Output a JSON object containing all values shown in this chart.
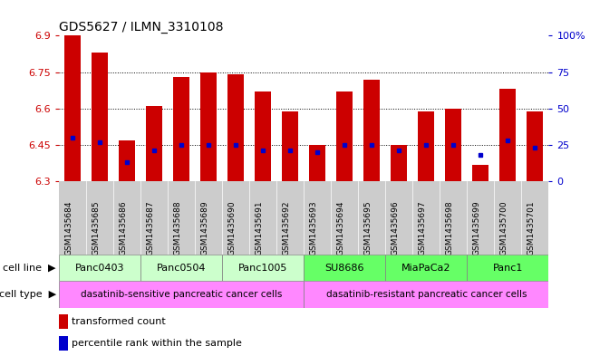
{
  "title": "GDS5627 / ILMN_3310108",
  "samples": [
    "GSM1435684",
    "GSM1435685",
    "GSM1435686",
    "GSM1435687",
    "GSM1435688",
    "GSM1435689",
    "GSM1435690",
    "GSM1435691",
    "GSM1435692",
    "GSM1435693",
    "GSM1435694",
    "GSM1435695",
    "GSM1435696",
    "GSM1435697",
    "GSM1435698",
    "GSM1435699",
    "GSM1435700",
    "GSM1435701"
  ],
  "bar_tops": [
    6.9,
    6.83,
    6.47,
    6.61,
    6.73,
    6.75,
    6.74,
    6.67,
    6.59,
    6.45,
    6.67,
    6.72,
    6.45,
    6.59,
    6.6,
    6.37,
    6.68,
    6.59
  ],
  "bar_base": 6.3,
  "blue_dot_y": [
    6.48,
    6.46,
    6.38,
    6.43,
    6.45,
    6.45,
    6.45,
    6.43,
    6.43,
    6.42,
    6.45,
    6.45,
    6.43,
    6.45,
    6.45,
    6.41,
    6.47,
    6.44
  ],
  "ylim": [
    6.3,
    6.9
  ],
  "yticks": [
    6.3,
    6.45,
    6.6,
    6.75,
    6.9
  ],
  "right_yticks": [
    0,
    25,
    50,
    75,
    100
  ],
  "right_ytick_labels": [
    "0",
    "25",
    "50",
    "75",
    "100%"
  ],
  "bar_color": "#cc0000",
  "dot_color": "#0000cc",
  "grid_color": "#000000",
  "cell_lines": [
    {
      "name": "Panc0403",
      "start": 0,
      "end": 3,
      "color": "#ccffcc"
    },
    {
      "name": "Panc0504",
      "start": 3,
      "end": 6,
      "color": "#ccffcc"
    },
    {
      "name": "Panc1005",
      "start": 6,
      "end": 9,
      "color": "#ccffcc"
    },
    {
      "name": "SU8686",
      "start": 9,
      "end": 12,
      "color": "#66ff66"
    },
    {
      "name": "MiaPaCa2",
      "start": 12,
      "end": 15,
      "color": "#66ff66"
    },
    {
      "name": "Panc1",
      "start": 15,
      "end": 18,
      "color": "#66ff66"
    }
  ],
  "cell_types": [
    {
      "name": "dasatinib-sensitive pancreatic cancer cells",
      "start": 0,
      "end": 9,
      "color": "#ff88ff"
    },
    {
      "name": "dasatinib-resistant pancreatic cancer cells",
      "start": 9,
      "end": 18,
      "color": "#ff88ff"
    }
  ],
  "bar_width": 0.6,
  "bg_color": "#ffffff",
  "label_color_left": "#cc0000",
  "label_color_right": "#0000cc",
  "sample_bg_color": "#cccccc"
}
